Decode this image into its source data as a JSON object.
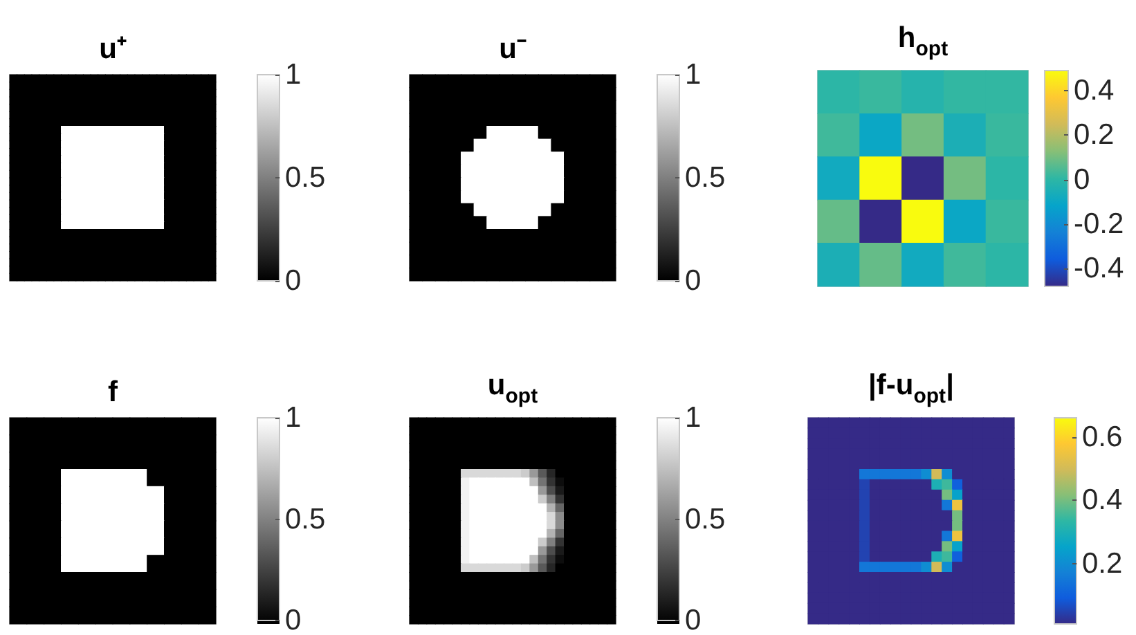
{
  "chart_data": [
    {
      "type": "heatmap",
      "title": "u⁺",
      "tick_labels": false,
      "clim": [
        0,
        1
      ],
      "cticks": [
        0,
        0.5,
        1
      ],
      "colors": [
        "#000000",
        "#ffffff"
      ],
      "categories": [
        null,
        null,
        null,
        null,
        null,
        null,
        null,
        null,
        null,
        null,
        null,
        null,
        null,
        null,
        null,
        null,
        null,
        null,
        null,
        null,
        null,
        null,
        null,
        null,
        null,
        null,
        null,
        null
      ],
      "y_categories": [
        null,
        null,
        null,
        null,
        null,
        null,
        null,
        null,
        null,
        null,
        null,
        null,
        null,
        null,
        null,
        null,
        null,
        null,
        null,
        null,
        null,
        null,
        null,
        null,
        null,
        null,
        null,
        null
      ],
      "cells": [
        [
          0,
          0,
          0,
          0,
          0,
          0,
          0,
          0,
          0,
          0,
          0,
          0,
          0,
          0,
          0,
          0,
          0,
          0,
          0,
          0,
          0,
          0,
          0,
          0,
          0,
          0,
          0,
          0
        ],
        [
          0,
          0,
          0,
          0,
          0,
          0,
          0,
          0,
          0,
          0,
          0,
          0,
          0,
          0,
          0,
          0,
          0,
          0,
          0,
          0,
          0,
          0,
          0,
          0,
          0,
          0,
          0,
          0
        ],
        [
          0,
          0,
          0,
          0,
          0,
          0,
          0,
          0,
          0,
          0,
          0,
          0,
          0,
          0,
          0,
          0,
          0,
          0,
          0,
          0,
          0,
          0,
          0,
          0,
          0,
          0,
          0,
          0
        ],
        [
          0,
          0,
          0,
          0,
          0,
          0,
          0,
          0,
          0,
          0,
          0,
          0,
          0,
          0,
          0,
          0,
          0,
          0,
          0,
          0,
          0,
          0,
          0,
          0,
          0,
          0,
          0,
          0
        ],
        [
          0,
          0,
          0,
          0,
          0,
          0,
          0,
          0,
          0,
          0,
          0,
          0,
          0,
          0,
          0,
          0,
          0,
          0,
          0,
          0,
          0,
          0,
          0,
          0,
          0,
          0,
          0,
          0
        ],
        [
          0,
          0,
          0,
          0,
          0,
          0,
          0,
          0,
          0,
          0,
          0,
          0,
          0,
          0,
          0,
          0,
          0,
          0,
          0,
          0,
          0,
          0,
          0,
          0,
          0,
          0,
          0,
          0
        ],
        [
          0,
          0,
          0,
          0,
          0,
          0,
          0,
          0,
          0,
          0,
          0,
          0,
          0,
          0,
          0,
          0,
          0,
          0,
          0,
          0,
          0,
          0,
          0,
          0,
          0,
          0,
          0,
          0
        ],
        [
          0,
          0,
          0,
          0,
          0,
          0,
          0,
          1,
          1,
          1,
          1,
          1,
          1,
          1,
          1,
          1,
          1,
          1,
          1,
          1,
          1,
          0,
          0,
          0,
          0,
          0,
          0,
          0
        ],
        [
          0,
          0,
          0,
          0,
          0,
          0,
          0,
          1,
          1,
          1,
          1,
          1,
          1,
          1,
          1,
          1,
          1,
          1,
          1,
          1,
          1,
          0,
          0,
          0,
          0,
          0,
          0,
          0
        ],
        [
          0,
          0,
          0,
          0,
          0,
          0,
          0,
          1,
          1,
          1,
          1,
          1,
          1,
          1,
          1,
          1,
          1,
          1,
          1,
          1,
          1,
          0,
          0,
          0,
          0,
          0,
          0,
          0
        ],
        [
          0,
          0,
          0,
          0,
          0,
          0,
          0,
          1,
          1,
          1,
          1,
          1,
          1,
          1,
          1,
          1,
          1,
          1,
          1,
          1,
          1,
          0,
          0,
          0,
          0,
          0,
          0,
          0
        ],
        [
          0,
          0,
          0,
          0,
          0,
          0,
          0,
          1,
          1,
          1,
          1,
          1,
          1,
          1,
          1,
          1,
          1,
          1,
          1,
          1,
          1,
          0,
          0,
          0,
          0,
          0,
          0,
          0
        ],
        [
          0,
          0,
          0,
          0,
          0,
          0,
          0,
          1,
          1,
          1,
          1,
          1,
          1,
          1,
          1,
          1,
          1,
          1,
          1,
          1,
          1,
          0,
          0,
          0,
          0,
          0,
          0,
          0
        ],
        [
          0,
          0,
          0,
          0,
          0,
          0,
          0,
          1,
          1,
          1,
          1,
          1,
          1,
          1,
          1,
          1,
          1,
          1,
          1,
          1,
          1,
          0,
          0,
          0,
          0,
          0,
          0,
          0
        ],
        [
          0,
          0,
          0,
          0,
          0,
          0,
          0,
          1,
          1,
          1,
          1,
          1,
          1,
          1,
          1,
          1,
          1,
          1,
          1,
          1,
          1,
          0,
          0,
          0,
          0,
          0,
          0,
          0
        ],
        [
          0,
          0,
          0,
          0,
          0,
          0,
          0,
          1,
          1,
          1,
          1,
          1,
          1,
          1,
          1,
          1,
          1,
          1,
          1,
          1,
          1,
          0,
          0,
          0,
          0,
          0,
          0,
          0
        ],
        [
          0,
          0,
          0,
          0,
          0,
          0,
          0,
          1,
          1,
          1,
          1,
          1,
          1,
          1,
          1,
          1,
          1,
          1,
          1,
          1,
          1,
          0,
          0,
          0,
          0,
          0,
          0,
          0
        ],
        [
          0,
          0,
          0,
          0,
          0,
          0,
          0,
          1,
          1,
          1,
          1,
          1,
          1,
          1,
          1,
          1,
          1,
          1,
          1,
          1,
          1,
          0,
          0,
          0,
          0,
          0,
          0,
          0
        ],
        [
          0,
          0,
          0,
          0,
          0,
          0,
          0,
          1,
          1,
          1,
          1,
          1,
          1,
          1,
          1,
          1,
          1,
          1,
          1,
          1,
          1,
          0,
          0,
          0,
          0,
          0,
          0,
          0
        ],
        [
          0,
          0,
          0,
          0,
          0,
          0,
          0,
          1,
          1,
          1,
          1,
          1,
          1,
          1,
          1,
          1,
          1,
          1,
          1,
          1,
          1,
          0,
          0,
          0,
          0,
          0,
          0,
          0
        ],
        [
          0,
          0,
          0,
          0,
          0,
          0,
          0,
          1,
          1,
          1,
          1,
          1,
          1,
          1,
          1,
          1,
          1,
          1,
          1,
          1,
          1,
          0,
          0,
          0,
          0,
          0,
          0,
          0
        ],
        [
          0,
          0,
          0,
          0,
          0,
          0,
          0,
          0,
          0,
          0,
          0,
          0,
          0,
          0,
          0,
          0,
          0,
          0,
          0,
          0,
          0,
          0,
          0,
          0,
          0,
          0,
          0,
          0
        ],
        [
          0,
          0,
          0,
          0,
          0,
          0,
          0,
          0,
          0,
          0,
          0,
          0,
          0,
          0,
          0,
          0,
          0,
          0,
          0,
          0,
          0,
          0,
          0,
          0,
          0,
          0,
          0,
          0
        ],
        [
          0,
          0,
          0,
          0,
          0,
          0,
          0,
          0,
          0,
          0,
          0,
          0,
          0,
          0,
          0,
          0,
          0,
          0,
          0,
          0,
          0,
          0,
          0,
          0,
          0,
          0,
          0,
          0
        ],
        [
          0,
          0,
          0,
          0,
          0,
          0,
          0,
          0,
          0,
          0,
          0,
          0,
          0,
          0,
          0,
          0,
          0,
          0,
          0,
          0,
          0,
          0,
          0,
          0,
          0,
          0,
          0,
          0
        ],
        [
          0,
          0,
          0,
          0,
          0,
          0,
          0,
          0,
          0,
          0,
          0,
          0,
          0,
          0,
          0,
          0,
          0,
          0,
          0,
          0,
          0,
          0,
          0,
          0,
          0,
          0,
          0,
          0
        ],
        [
          0,
          0,
          0,
          0,
          0,
          0,
          0,
          0,
          0,
          0,
          0,
          0,
          0,
          0,
          0,
          0,
          0,
          0,
          0,
          0,
          0,
          0,
          0,
          0,
          0,
          0,
          0,
          0
        ],
        [
          0,
          0,
          0,
          0,
          0,
          0,
          0,
          0,
          0,
          0,
          0,
          0,
          0,
          0,
          0,
          0,
          0,
          0,
          0,
          0,
          0,
          0,
          0,
          0,
          0,
          0,
          0,
          0
        ]
      ]
    },
    {
      "type": "heatmap",
      "title": "u⁻",
      "tick_labels": false,
      "clim": [
        0,
        1
      ],
      "cticks": [
        0,
        0.5,
        1
      ],
      "colors": [
        "#000000",
        "#ffffff"
      ],
      "categories": [
        null,
        null,
        null,
        null,
        null,
        null,
        null,
        null,
        null,
        null,
        null,
        null,
        null,
        null,
        null,
        null
      ],
      "y_categories": [
        null,
        null,
        null,
        null,
        null,
        null,
        null,
        null,
        null,
        null,
        null,
        null,
        null,
        null,
        null,
        null
      ],
      "cells": [
        [
          0,
          0,
          0,
          0,
          0,
          0,
          0,
          0,
          0,
          0,
          0,
          0,
          0,
          0,
          0,
          0
        ],
        [
          0,
          0,
          0,
          0,
          0,
          0,
          0,
          0,
          0,
          0,
          0,
          0,
          0,
          0,
          0,
          0
        ],
        [
          0,
          0,
          0,
          0,
          0,
          0,
          0,
          0,
          0,
          0,
          0,
          0,
          0,
          0,
          0,
          0
        ],
        [
          0,
          0,
          0,
          0,
          0,
          0,
          0,
          0,
          0,
          0,
          0,
          0,
          0,
          0,
          0,
          0
        ],
        [
          0,
          0,
          0,
          0,
          0,
          0,
          1,
          1,
          1,
          1,
          0,
          0,
          0,
          0,
          0,
          0
        ],
        [
          0,
          0,
          0,
          0,
          0,
          1,
          1,
          1,
          1,
          1,
          1,
          0,
          0,
          0,
          0,
          0
        ],
        [
          0,
          0,
          0,
          0,
          1,
          1,
          1,
          1,
          1,
          1,
          1,
          1,
          0,
          0,
          0,
          0
        ],
        [
          0,
          0,
          0,
          0,
          1,
          1,
          1,
          1,
          1,
          1,
          1,
          1,
          0,
          0,
          0,
          0
        ],
        [
          0,
          0,
          0,
          0,
          1,
          1,
          1,
          1,
          1,
          1,
          1,
          1,
          0,
          0,
          0,
          0
        ],
        [
          0,
          0,
          0,
          0,
          1,
          1,
          1,
          1,
          1,
          1,
          1,
          1,
          0,
          0,
          0,
          0
        ],
        [
          0,
          0,
          0,
          0,
          0,
          1,
          1,
          1,
          1,
          1,
          1,
          0,
          0,
          0,
          0,
          0
        ],
        [
          0,
          0,
          0,
          0,
          0,
          0,
          1,
          1,
          1,
          1,
          0,
          0,
          0,
          0,
          0,
          0
        ],
        [
          0,
          0,
          0,
          0,
          0,
          0,
          0,
          0,
          0,
          0,
          0,
          0,
          0,
          0,
          0,
          0
        ],
        [
          0,
          0,
          0,
          0,
          0,
          0,
          0,
          0,
          0,
          0,
          0,
          0,
          0,
          0,
          0,
          0
        ],
        [
          0,
          0,
          0,
          0,
          0,
          0,
          0,
          0,
          0,
          0,
          0,
          0,
          0,
          0,
          0,
          0
        ],
        [
          0,
          0,
          0,
          0,
          0,
          0,
          0,
          0,
          0,
          0,
          0,
          0,
          0,
          0,
          0,
          0
        ]
      ]
    },
    {
      "type": "heatmap",
      "title": "h$_{opt}$",
      "tick_labels": false,
      "clim": [
        -0.48,
        0.49
      ],
      "cticks": [
        -0.4,
        -0.2,
        0,
        0.2,
        0.4
      ],
      "colors": [
        "#352a87",
        "#0f5cdd",
        "#1481d6",
        "#06a4ca",
        "#2eb7a4",
        "#87bf77",
        "#d1bb59",
        "#fec832",
        "#f9fb0e"
      ],
      "categories": [
        null,
        null,
        null,
        null,
        null
      ],
      "y_categories": [
        null,
        null,
        null,
        null,
        null
      ],
      "cells": [
        [
          0.0,
          0.02,
          -0.02,
          0.01,
          0.01
        ],
        [
          0.03,
          -0.1,
          0.1,
          -0.05,
          0.02
        ],
        [
          -0.08,
          0.49,
          -0.48,
          0.1,
          0.0
        ],
        [
          0.08,
          -0.48,
          0.49,
          -0.1,
          0.02
        ],
        [
          -0.05,
          0.08,
          -0.08,
          0.03,
          0.0
        ]
      ]
    },
    {
      "type": "heatmap",
      "title": "f",
      "tick_labels": false,
      "clim": [
        0,
        1
      ],
      "cticks": [
        0,
        0.5,
        1
      ],
      "colors": [
        "#000000",
        "#ffffff"
      ],
      "categories": [
        null,
        null,
        null,
        null,
        null,
        null,
        null,
        null,
        null,
        null,
        null,
        null
      ],
      "y_categories": [
        null,
        null,
        null,
        null,
        null,
        null,
        null,
        null,
        null,
        null,
        null,
        null
      ],
      "cells": [
        [
          0,
          0,
          0,
          0,
          0,
          0,
          0,
          0,
          0,
          0,
          0,
          0
        ],
        [
          0,
          0,
          0,
          0,
          0,
          0,
          0,
          0,
          0,
          0,
          0,
          0
        ],
        [
          0,
          0,
          0,
          0,
          0,
          0,
          0,
          0,
          0,
          0,
          0,
          0
        ],
        [
          0,
          0,
          0,
          1,
          1,
          1,
          1,
          1,
          0,
          0,
          0,
          0
        ],
        [
          0,
          0,
          0,
          1,
          1,
          1,
          1,
          1,
          1,
          0,
          0,
          0
        ],
        [
          0,
          0,
          0,
          1,
          1,
          1,
          1,
          1,
          1,
          0,
          0,
          0
        ],
        [
          0,
          0,
          0,
          1,
          1,
          1,
          1,
          1,
          1,
          0,
          0,
          0
        ],
        [
          0,
          0,
          0,
          1,
          1,
          1,
          1,
          1,
          1,
          0,
          0,
          0
        ],
        [
          0,
          0,
          0,
          1,
          1,
          1,
          1,
          1,
          0,
          0,
          0,
          0
        ],
        [
          0,
          0,
          0,
          0,
          0,
          0,
          0,
          0,
          0,
          0,
          0,
          0
        ],
        [
          0,
          0,
          0,
          0,
          0,
          0,
          0,
          0,
          0,
          0,
          0,
          0
        ],
        [
          0,
          0,
          0,
          0,
          0,
          0,
          0,
          0,
          0,
          0,
          0,
          0
        ]
      ]
    },
    {
      "type": "heatmap",
      "title": "u$_{opt}$",
      "tick_labels": false,
      "clim": [
        0,
        1
      ],
      "cticks": [
        0,
        0.5,
        1
      ],
      "colors": [
        "#000000",
        "#ffffff"
      ],
      "categories": [
        null,
        null,
        null,
        null,
        null,
        null,
        null,
        null,
        null,
        null,
        null,
        null,
        null,
        null,
        null,
        null,
        null,
        null,
        null,
        null,
        null,
        null,
        null,
        null
      ],
      "y_categories": [
        null,
        null,
        null,
        null,
        null,
        null,
        null,
        null,
        null,
        null,
        null,
        null,
        null,
        null,
        null,
        null,
        null,
        null,
        null,
        null,
        null,
        null,
        null,
        null
      ],
      "cells": [
        [
          0,
          0,
          0,
          0,
          0,
          0,
          0,
          0,
          0,
          0,
          0,
          0,
          0,
          0,
          0,
          0,
          0,
          0,
          0,
          0,
          0,
          0,
          0,
          0
        ],
        [
          0,
          0,
          0,
          0,
          0,
          0,
          0,
          0,
          0,
          0,
          0,
          0,
          0,
          0,
          0,
          0,
          0,
          0,
          0,
          0,
          0,
          0,
          0,
          0
        ],
        [
          0,
          0,
          0,
          0,
          0,
          0,
          0,
          0,
          0,
          0,
          0,
          0,
          0,
          0,
          0,
          0,
          0,
          0,
          0,
          0,
          0,
          0,
          0,
          0
        ],
        [
          0,
          0,
          0,
          0,
          0,
          0,
          0,
          0,
          0,
          0,
          0,
          0,
          0,
          0,
          0,
          0,
          0,
          0,
          0,
          0,
          0,
          0,
          0,
          0
        ],
        [
          0,
          0,
          0,
          0,
          0,
          0,
          0,
          0,
          0,
          0,
          0,
          0,
          0,
          0,
          0,
          0,
          0,
          0,
          0,
          0,
          0,
          0,
          0,
          0
        ],
        [
          0,
          0,
          0,
          0,
          0,
          0,
          0,
          0,
          0,
          0,
          0,
          0,
          0,
          0,
          0,
          0,
          0,
          0,
          0,
          0,
          0,
          0,
          0,
          0
        ],
        [
          0,
          0,
          0,
          0,
          0,
          0,
          0.85,
          0.85,
          0.85,
          0.85,
          0.85,
          0.85,
          0.85,
          0.8,
          0.6,
          0.35,
          0.15,
          0,
          0,
          0,
          0,
          0,
          0,
          0
        ],
        [
          0,
          0,
          0,
          0,
          0,
          0,
          0.95,
          1,
          1,
          1,
          1,
          1,
          1,
          1,
          0.75,
          0.45,
          0.2,
          0.05,
          0,
          0,
          0,
          0,
          0,
          0
        ],
        [
          0,
          0,
          0,
          0,
          0,
          0,
          0.95,
          1,
          1,
          1,
          1,
          1,
          1,
          1,
          1,
          0.6,
          0.3,
          0.1,
          0,
          0,
          0,
          0,
          0,
          0
        ],
        [
          0,
          0,
          0,
          0,
          0,
          0,
          0.95,
          1,
          1,
          1,
          1,
          1,
          1,
          1,
          1,
          0.8,
          0.5,
          0.2,
          0,
          0,
          0,
          0,
          0,
          0
        ],
        [
          0,
          0,
          0,
          0,
          0,
          0,
          0.95,
          1,
          1,
          1,
          1,
          1,
          1,
          1,
          1,
          1,
          0.7,
          0.4,
          0,
          0,
          0,
          0,
          0,
          0
        ],
        [
          0,
          0,
          0,
          0,
          0,
          0,
          0.95,
          1,
          1,
          1,
          1,
          1,
          1,
          1,
          1,
          1,
          0.85,
          0.55,
          0,
          0,
          0,
          0,
          0,
          0
        ],
        [
          0,
          0,
          0,
          0,
          0,
          0,
          0.95,
          1,
          1,
          1,
          1,
          1,
          1,
          1,
          1,
          1,
          0.85,
          0.55,
          0,
          0,
          0,
          0,
          0,
          0
        ],
        [
          0,
          0,
          0,
          0,
          0,
          0,
          0.95,
          1,
          1,
          1,
          1,
          1,
          1,
          1,
          1,
          1,
          0.7,
          0.4,
          0,
          0,
          0,
          0,
          0,
          0
        ],
        [
          0,
          0,
          0,
          0,
          0,
          0,
          0.95,
          1,
          1,
          1,
          1,
          1,
          1,
          1,
          1,
          0.8,
          0.5,
          0.2,
          0,
          0,
          0,
          0,
          0,
          0
        ],
        [
          0,
          0,
          0,
          0,
          0,
          0,
          0.95,
          1,
          1,
          1,
          1,
          1,
          1,
          1,
          1,
          0.6,
          0.3,
          0.1,
          0,
          0,
          0,
          0,
          0,
          0
        ],
        [
          0,
          0,
          0,
          0,
          0,
          0,
          0.95,
          1,
          1,
          1,
          1,
          1,
          1,
          1,
          0.75,
          0.45,
          0.2,
          0.05,
          0,
          0,
          0,
          0,
          0,
          0
        ],
        [
          0,
          0,
          0,
          0,
          0,
          0,
          0.85,
          0.85,
          0.85,
          0.85,
          0.85,
          0.85,
          0.85,
          0.8,
          0.6,
          0.35,
          0.15,
          0,
          0,
          0,
          0,
          0,
          0,
          0
        ],
        [
          0,
          0,
          0,
          0,
          0,
          0,
          0,
          0,
          0,
          0,
          0,
          0,
          0,
          0,
          0,
          0,
          0,
          0,
          0,
          0,
          0,
          0,
          0,
          0
        ],
        [
          0,
          0,
          0,
          0,
          0,
          0,
          0,
          0,
          0,
          0,
          0,
          0,
          0,
          0,
          0,
          0,
          0,
          0,
          0,
          0,
          0,
          0,
          0,
          0
        ],
        [
          0,
          0,
          0,
          0,
          0,
          0,
          0,
          0,
          0,
          0,
          0,
          0,
          0,
          0,
          0,
          0,
          0,
          0,
          0,
          0,
          0,
          0,
          0,
          0
        ],
        [
          0,
          0,
          0,
          0,
          0,
          0,
          0,
          0,
          0,
          0,
          0,
          0,
          0,
          0,
          0,
          0,
          0,
          0,
          0,
          0,
          0,
          0,
          0,
          0
        ],
        [
          0,
          0,
          0,
          0,
          0,
          0,
          0,
          0,
          0,
          0,
          0,
          0,
          0,
          0,
          0,
          0,
          0,
          0,
          0,
          0,
          0,
          0,
          0,
          0
        ],
        [
          0,
          0,
          0,
          0,
          0,
          0,
          0,
          0,
          0,
          0,
          0,
          0,
          0,
          0,
          0,
          0,
          0,
          0,
          0,
          0,
          0,
          0,
          0,
          0
        ]
      ]
    },
    {
      "type": "heatmap",
      "title": "|f-u$_{opt}$|",
      "tick_labels": false,
      "clim": [
        0.01,
        0.66
      ],
      "cticks": [
        0.2,
        0.4,
        0.6
      ],
      "colors": [
        "#352a87",
        "#0f5cdd",
        "#1481d6",
        "#06a4ca",
        "#2eb7a4",
        "#87bf77",
        "#d1bb59",
        "#fec832",
        "#f9fb0e"
      ],
      "categories": [
        null,
        null,
        null,
        null,
        null,
        null,
        null,
        null,
        null,
        null,
        null,
        null,
        null,
        null,
        null,
        null,
        null,
        null,
        null,
        null
      ],
      "y_categories": [
        null,
        null,
        null,
        null,
        null,
        null,
        null,
        null,
        null,
        null,
        null,
        null,
        null,
        null,
        null,
        null,
        null,
        null,
        null,
        null
      ],
      "cells": [
        [
          0.01,
          0.01,
          0.01,
          0.01,
          0.01,
          0.01,
          0.01,
          0.01,
          0.01,
          0.01,
          0.01,
          0.01,
          0.01,
          0.01,
          0.01,
          0.01,
          0.01,
          0.01,
          0.01,
          0.01
        ],
        [
          0.01,
          0.01,
          0.01,
          0.01,
          0.01,
          0.01,
          0.01,
          0.01,
          0.01,
          0.01,
          0.01,
          0.01,
          0.01,
          0.01,
          0.01,
          0.01,
          0.01,
          0.01,
          0.01,
          0.01
        ],
        [
          0.01,
          0.01,
          0.01,
          0.01,
          0.01,
          0.01,
          0.01,
          0.01,
          0.01,
          0.01,
          0.01,
          0.01,
          0.01,
          0.01,
          0.01,
          0.01,
          0.01,
          0.01,
          0.01,
          0.01
        ],
        [
          0.01,
          0.01,
          0.01,
          0.01,
          0.01,
          0.01,
          0.01,
          0.01,
          0.01,
          0.01,
          0.01,
          0.01,
          0.01,
          0.01,
          0.01,
          0.01,
          0.01,
          0.01,
          0.01,
          0.01
        ],
        [
          0.01,
          0.01,
          0.01,
          0.01,
          0.01,
          0.01,
          0.01,
          0.01,
          0.01,
          0.01,
          0.01,
          0.01,
          0.01,
          0.01,
          0.01,
          0.01,
          0.01,
          0.01,
          0.01,
          0.01
        ],
        [
          0.01,
          0.01,
          0.01,
          0.01,
          0.01,
          0.15,
          0.15,
          0.15,
          0.15,
          0.15,
          0.15,
          0.2,
          0.5,
          0.2,
          0.01,
          0.01,
          0.01,
          0.01,
          0.01,
          0.01
        ],
        [
          0.01,
          0.01,
          0.01,
          0.01,
          0.01,
          0.05,
          0.01,
          0.01,
          0.01,
          0.01,
          0.01,
          0.01,
          0.3,
          0.35,
          0.1,
          0.01,
          0.01,
          0.01,
          0.01,
          0.01
        ],
        [
          0.01,
          0.01,
          0.01,
          0.01,
          0.01,
          0.05,
          0.01,
          0.01,
          0.01,
          0.01,
          0.01,
          0.01,
          0.01,
          0.4,
          0.25,
          0.01,
          0.01,
          0.01,
          0.01,
          0.01
        ],
        [
          0.01,
          0.01,
          0.01,
          0.01,
          0.01,
          0.05,
          0.01,
          0.01,
          0.01,
          0.01,
          0.01,
          0.01,
          0.01,
          0.15,
          0.55,
          0.01,
          0.01,
          0.01,
          0.01,
          0.01
        ],
        [
          0.01,
          0.01,
          0.01,
          0.01,
          0.01,
          0.05,
          0.01,
          0.01,
          0.01,
          0.01,
          0.01,
          0.01,
          0.01,
          0.01,
          0.4,
          0.01,
          0.01,
          0.01,
          0.01,
          0.01
        ],
        [
          0.01,
          0.01,
          0.01,
          0.01,
          0.01,
          0.05,
          0.01,
          0.01,
          0.01,
          0.01,
          0.01,
          0.01,
          0.01,
          0.01,
          0.4,
          0.01,
          0.01,
          0.01,
          0.01,
          0.01
        ],
        [
          0.01,
          0.01,
          0.01,
          0.01,
          0.01,
          0.05,
          0.01,
          0.01,
          0.01,
          0.01,
          0.01,
          0.01,
          0.01,
          0.15,
          0.55,
          0.01,
          0.01,
          0.01,
          0.01,
          0.01
        ],
        [
          0.01,
          0.01,
          0.01,
          0.01,
          0.01,
          0.05,
          0.01,
          0.01,
          0.01,
          0.01,
          0.01,
          0.01,
          0.01,
          0.4,
          0.25,
          0.01,
          0.01,
          0.01,
          0.01,
          0.01
        ],
        [
          0.01,
          0.01,
          0.01,
          0.01,
          0.01,
          0.05,
          0.01,
          0.01,
          0.01,
          0.01,
          0.01,
          0.01,
          0.3,
          0.35,
          0.1,
          0.01,
          0.01,
          0.01,
          0.01,
          0.01
        ],
        [
          0.01,
          0.01,
          0.01,
          0.01,
          0.01,
          0.15,
          0.15,
          0.15,
          0.15,
          0.15,
          0.15,
          0.2,
          0.5,
          0.2,
          0.01,
          0.01,
          0.01,
          0.01,
          0.01,
          0.01
        ],
        [
          0.01,
          0.01,
          0.01,
          0.01,
          0.01,
          0.01,
          0.01,
          0.01,
          0.01,
          0.01,
          0.01,
          0.01,
          0.01,
          0.01,
          0.01,
          0.01,
          0.01,
          0.01,
          0.01,
          0.01
        ],
        [
          0.01,
          0.01,
          0.01,
          0.01,
          0.01,
          0.01,
          0.01,
          0.01,
          0.01,
          0.01,
          0.01,
          0.01,
          0.01,
          0.01,
          0.01,
          0.01,
          0.01,
          0.01,
          0.01,
          0.01
        ],
        [
          0.01,
          0.01,
          0.01,
          0.01,
          0.01,
          0.01,
          0.01,
          0.01,
          0.01,
          0.01,
          0.01,
          0.01,
          0.01,
          0.01,
          0.01,
          0.01,
          0.01,
          0.01,
          0.01,
          0.01
        ],
        [
          0.01,
          0.01,
          0.01,
          0.01,
          0.01,
          0.01,
          0.01,
          0.01,
          0.01,
          0.01,
          0.01,
          0.01,
          0.01,
          0.01,
          0.01,
          0.01,
          0.01,
          0.01,
          0.01,
          0.01
        ],
        [
          0.01,
          0.01,
          0.01,
          0.01,
          0.01,
          0.01,
          0.01,
          0.01,
          0.01,
          0.01,
          0.01,
          0.01,
          0.01,
          0.01,
          0.01,
          0.01,
          0.01,
          0.01,
          0.01,
          0.01
        ]
      ]
    }
  ]
}
